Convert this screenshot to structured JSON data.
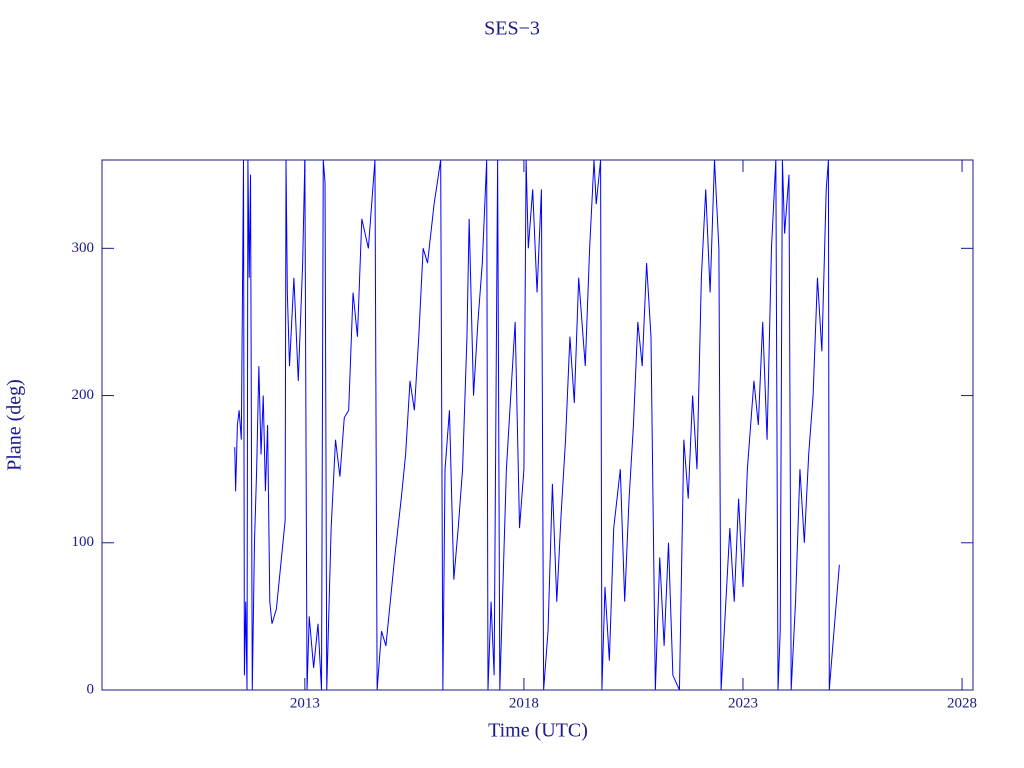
{
  "chart_data": {
    "type": "line",
    "title": "SES−3",
    "x_label": "Time (UTC)",
    "y_label": "Plane (deg)",
    "color": "#0000ff",
    "xlim": [
      2008.37,
      2028.25
    ],
    "xticks": [
      2013,
      2018,
      2023,
      2028
    ],
    "ylim": [
      0,
      360
    ],
    "yticks": [
      0,
      100,
      200,
      300
    ],
    "x": [
      2011.4,
      2011.42,
      2011.46,
      2011.5,
      2011.55,
      2011.6,
      2011.62,
      2011.65,
      2011.68,
      2011.7,
      2011.73,
      2011.76,
      2011.8,
      2011.85,
      2011.9,
      2011.95,
      2012.0,
      2012.05,
      2012.1,
      2012.15,
      2012.2,
      2012.25,
      2012.35,
      2012.45,
      2012.55,
      2012.57,
      2012.6,
      2012.65,
      2012.75,
      2012.85,
      2012.95,
      2013.0,
      2013.05,
      2013.1,
      2013.2,
      2013.3,
      2013.38,
      2013.42,
      2013.46,
      2013.5,
      2013.6,
      2013.7,
      2013.8,
      2013.9,
      2014.0,
      2014.1,
      2014.2,
      2014.3,
      2014.45,
      2014.6,
      2014.65,
      2014.75,
      2014.85,
      2014.95,
      2015.05,
      2015.2,
      2015.3,
      2015.4,
      2015.5,
      2015.6,
      2015.7,
      2015.8,
      2015.95,
      2016.1,
      2016.15,
      2016.2,
      2016.3,
      2016.4,
      2016.5,
      2016.6,
      2016.7,
      2016.75,
      2016.85,
      2016.95,
      2017.05,
      2017.15,
      2017.18,
      2017.25,
      2017.32,
      2017.4,
      2017.45,
      2017.5,
      2017.6,
      2017.7,
      2017.8,
      2017.9,
      2018.0,
      2018.05,
      2018.1,
      2018.2,
      2018.3,
      2018.4,
      2018.45,
      2018.55,
      2018.65,
      2018.75,
      2018.85,
      2018.95,
      2019.05,
      2019.15,
      2019.25,
      2019.4,
      2019.5,
      2019.6,
      2019.65,
      2019.75,
      2019.78,
      2019.85,
      2019.95,
      2020.05,
      2020.2,
      2020.3,
      2020.4,
      2020.5,
      2020.6,
      2020.7,
      2020.8,
      2020.9,
      2021.0,
      2021.1,
      2021.2,
      2021.3,
      2021.4,
      2021.55,
      2021.65,
      2021.75,
      2021.85,
      2021.95,
      2022.05,
      2022.15,
      2022.25,
      2022.35,
      2022.45,
      2022.5,
      2022.7,
      2022.8,
      2022.9,
      2023.0,
      2023.1,
      2023.25,
      2023.35,
      2023.45,
      2023.55,
      2023.65,
      2023.75,
      2023.8,
      2023.85,
      2023.9,
      2023.95,
      2024.05,
      2024.1,
      2024.2,
      2024.3,
      2024.4,
      2024.5,
      2024.6,
      2024.7,
      2024.8,
      2024.9,
      2024.95,
      2024.97,
      2025.05,
      2025.2
    ],
    "values": [
      165,
      135,
      180,
      190,
      170,
      360,
      10,
      60,
      0,
      360,
      280,
      350,
      0,
      100,
      150,
      220,
      160,
      200,
      135,
      180,
      60,
      45,
      55,
      85,
      115,
      360,
      270,
      220,
      280,
      210,
      290,
      360,
      0,
      50,
      15,
      45,
      0,
      360,
      345,
      0,
      110,
      170,
      145,
      185,
      190,
      270,
      240,
      320,
      300,
      360,
      0,
      40,
      30,
      60,
      90,
      130,
      160,
      210,
      190,
      240,
      300,
      290,
      330,
      360,
      0,
      150,
      190,
      75,
      110,
      150,
      240,
      320,
      200,
      250,
      290,
      360,
      0,
      60,
      10,
      360,
      0,
      50,
      150,
      200,
      250,
      110,
      150,
      360,
      300,
      340,
      270,
      340,
      0,
      40,
      140,
      60,
      120,
      170,
      240,
      195,
      280,
      220,
      300,
      360,
      330,
      360,
      0,
      70,
      20,
      110,
      150,
      60,
      130,
      180,
      250,
      220,
      290,
      240,
      0,
      90,
      30,
      100,
      10,
      0,
      170,
      130,
      200,
      150,
      280,
      340,
      270,
      360,
      300,
      0,
      110,
      60,
      130,
      70,
      150,
      210,
      180,
      250,
      170,
      300,
      360,
      0,
      40,
      360,
      310,
      350,
      0,
      60,
      150,
      100,
      160,
      200,
      280,
      230,
      340,
      360,
      0,
      30,
      85
    ]
  }
}
